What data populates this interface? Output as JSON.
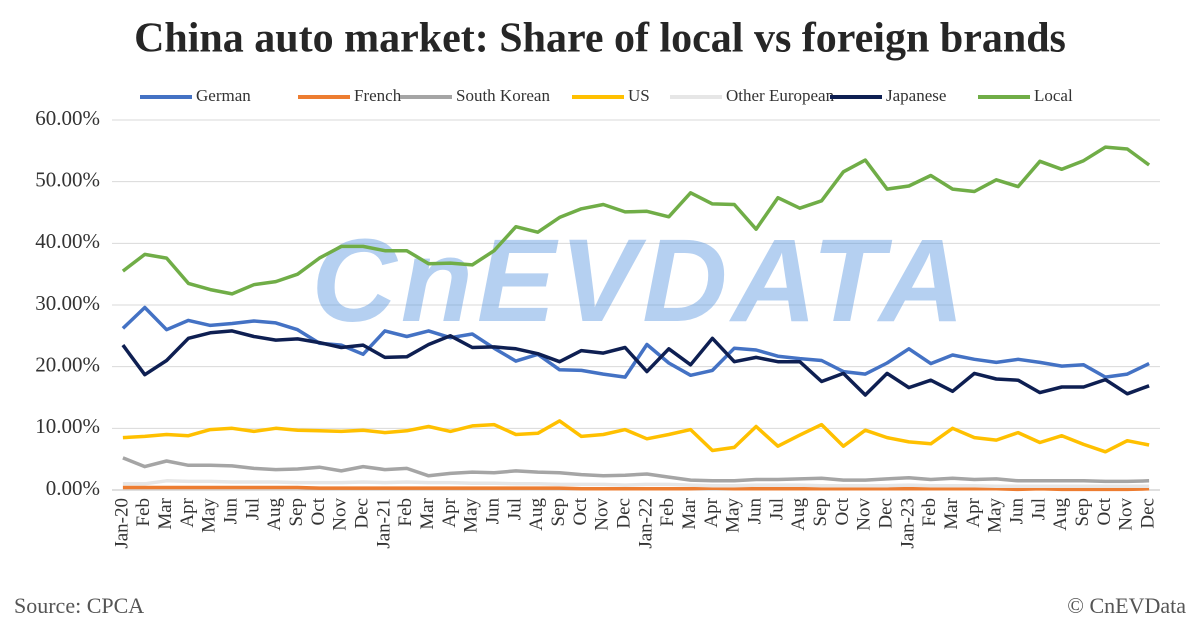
{
  "chart_data": {
    "type": "line",
    "title": "China auto market: Share of local vs foreign brands",
    "source": "Source: CPCA",
    "copyright": "© CnEVData",
    "watermark": "CnEVDATA",
    "categories": [
      "Jan-20",
      "Feb",
      "Mar",
      "Apr",
      "May",
      "Jun",
      "Jul",
      "Aug",
      "Sep",
      "Oct",
      "Nov",
      "Dec",
      "Jan-21",
      "Feb",
      "Mar",
      "Apr",
      "May",
      "Jun",
      "Jul",
      "Aug",
      "Sep",
      "Oct",
      "Nov",
      "Dec",
      "Jan-22",
      "Feb",
      "Mar",
      "Apr",
      "May",
      "Jun",
      "Jul",
      "Aug",
      "Sep",
      "Oct",
      "Nov",
      "Dec",
      "Jan-23",
      "Feb",
      "Mar",
      "Apr",
      "May",
      "Jun",
      "Jul",
      "Aug",
      "Sep",
      "Oct",
      "Nov",
      "Dec"
    ],
    "ylim": [
      0,
      60
    ],
    "yticks": [
      {
        "value": 0,
        "label": "0.00%"
      },
      {
        "value": 10,
        "label": "10.00%"
      },
      {
        "value": 20,
        "label": "20.00%"
      },
      {
        "value": 30,
        "label": "30.00%"
      },
      {
        "value": 40,
        "label": "40.00%"
      },
      {
        "value": 50,
        "label": "50.00%"
      },
      {
        "value": 60,
        "label": "60.00%"
      }
    ],
    "grid": true,
    "legend": "top",
    "series": [
      {
        "name": "German",
        "color": "#4472c4",
        "values": [
          26.2,
          29.6,
          26,
          27.5,
          26.7,
          27,
          27.4,
          27.1,
          26,
          23.8,
          23.5,
          22,
          25.8,
          24.9,
          25.8,
          24.7,
          25.3,
          23,
          20.9,
          22,
          19.5,
          19.4,
          18.8,
          18.3,
          23.6,
          20.6,
          18.6,
          19.4,
          23,
          22.7,
          21.7,
          21.3,
          21,
          19.2,
          18.8,
          20.6,
          22.9,
          20.5,
          21.9,
          21.2,
          20.7,
          21.2,
          20.7,
          20.1,
          20.3,
          18.3,
          18.8,
          20.5
        ]
      },
      {
        "name": "French",
        "color": "#ed7d31",
        "values": [
          0.4,
          0.4,
          0.4,
          0.4,
          0.4,
          0.4,
          0.4,
          0.4,
          0.4,
          0.3,
          0.3,
          0.3,
          0.3,
          0.3,
          0.3,
          0.3,
          0.3,
          0.3,
          0.3,
          0.3,
          0.3,
          0.2,
          0.2,
          0.2,
          0.2,
          0.2,
          0.2,
          0.3,
          0.2,
          0.2,
          0.2,
          0.2,
          0.2,
          0.2,
          0.2,
          0.2,
          0.2,
          0.2,
          0.2,
          0.2,
          0.2,
          0.1,
          0.2,
          0.1,
          0.1,
          0.1,
          0.1,
          0.2
        ]
      },
      {
        "name": "South Korean",
        "color": "#a5a5a5",
        "values": [
          5.2,
          3.8,
          4.7,
          4,
          4,
          3.9,
          3.5,
          3.3,
          3.4,
          3.7,
          3.1,
          3.8,
          3.3,
          3.5,
          2.3,
          2.7,
          2.9,
          2.8,
          3.1,
          2.9,
          2.8,
          2.5,
          2.3,
          2.4,
          2.6,
          2.1,
          1.6,
          1.5,
          1.5,
          1.7,
          1.7,
          1.8,
          1.9,
          1.6,
          1.6,
          1.8,
          2,
          1.7,
          1.9,
          1.7,
          1.8,
          1.5,
          1.5,
          1.5,
          1.5,
          1.4,
          1.4,
          1.5
        ]
      },
      {
        "name": "US",
        "color": "#ffc000",
        "values": [
          8.5,
          8.7,
          9,
          8.8,
          9.8,
          10,
          9.5,
          10,
          9.7,
          9.6,
          9.5,
          9.7,
          9.3,
          9.6,
          10.3,
          9.5,
          10.4,
          10.6,
          9,
          9.2,
          11.2,
          8.7,
          9,
          9.8,
          8.3,
          9,
          9.8,
          6.4,
          6.9,
          10.3,
          7.1,
          8.9,
          10.6,
          7.1,
          9.7,
          8.5,
          7.8,
          7.5,
          10,
          8.5,
          8.1,
          9.3,
          7.7,
          8.8,
          7.4,
          6.2,
          8,
          7.3
        ]
      },
      {
        "name": "Other European",
        "color": "#e6e6e6",
        "values": [
          1,
          1,
          1.5,
          1.4,
          1.4,
          1.3,
          1.3,
          1.3,
          1.2,
          1.2,
          1.2,
          1.3,
          1.2,
          1.3,
          1.2,
          1.2,
          1.1,
          1.1,
          1,
          1,
          0.9,
          0.9,
          0.9,
          0.8,
          0.9,
          0.9,
          0.8,
          0.7,
          0.7,
          0.8,
          0.8,
          0.8,
          0.7,
          0.7,
          0.7,
          0.7,
          0.8,
          0.7,
          0.7,
          0.7,
          0.6,
          0.6,
          0.6,
          0.6,
          0.6,
          0.6,
          0.6,
          0.6
        ]
      },
      {
        "name": "Japanese",
        "color": "#0e1f52",
        "values": [
          23.5,
          18.7,
          21,
          24.6,
          25.5,
          25.8,
          24.9,
          24.3,
          24.5,
          23.9,
          23.1,
          23.5,
          21.5,
          21.6,
          23.6,
          25,
          23.1,
          23.2,
          22.9,
          22.1,
          20.8,
          22.6,
          22.2,
          23.1,
          19.2,
          22.9,
          20.3,
          24.6,
          20.8,
          21.5,
          20.8,
          20.8,
          17.6,
          18.9,
          15.4,
          18.9,
          16.6,
          17.8,
          16,
          18.9,
          18,
          17.8,
          15.8,
          16.7,
          16.7,
          17.9,
          15.6,
          16.9
        ]
      },
      {
        "name": "Local",
        "color": "#70ad47",
        "values": [
          35.5,
          38.2,
          37.6,
          33.5,
          32.5,
          31.8,
          33.3,
          33.8,
          35,
          37.6,
          39.5,
          39.5,
          38.8,
          38.8,
          36.7,
          36.8,
          36.5,
          38.8,
          42.7,
          41.8,
          44.2,
          45.6,
          46.3,
          45.1,
          45.2,
          44.3,
          48.2,
          46.4,
          46.3,
          42.3,
          47.4,
          45.7,
          46.9,
          51.6,
          53.5,
          48.8,
          49.3,
          51,
          48.8,
          48.4,
          50.3,
          49.2,
          53.3,
          52,
          53.4,
          55.6,
          55.3,
          52.7
        ]
      }
    ]
  }
}
